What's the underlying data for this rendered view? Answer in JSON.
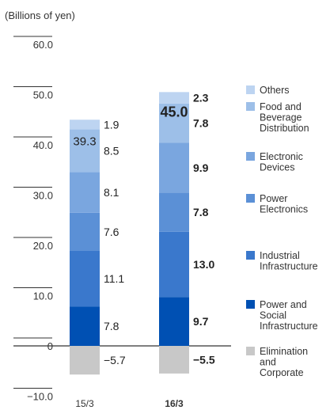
{
  "chart_data": {
    "type": "bar",
    "stacked": true,
    "unit_label": "(Billions of yen)",
    "ylim": [
      -10,
      60
    ],
    "yticks": [
      {
        "value": 60,
        "label": "60.0"
      },
      {
        "value": 50,
        "label": "50.0"
      },
      {
        "value": 40,
        "label": "40.0"
      },
      {
        "value": 30,
        "label": "30.0"
      },
      {
        "value": 20,
        "label": "20.0"
      },
      {
        "value": 10,
        "label": "10.0"
      },
      {
        "value": 0,
        "label": "0"
      },
      {
        "value": -10,
        "label": "−10.0"
      }
    ],
    "categories": [
      "15/3",
      "16/3"
    ],
    "totals": [
      {
        "value": 39.3,
        "label": "39.3"
      },
      {
        "value": 45.0,
        "label": "45.0"
      }
    ],
    "series": [
      {
        "name": "Power and Social Infrastructure",
        "color": "#0050b3",
        "values": [
          7.8,
          9.7
        ],
        "labels": [
          "7.8",
          "9.7"
        ]
      },
      {
        "name": "Industrial Infrastructure",
        "color": "#3a78cc",
        "values": [
          11.1,
          13.0
        ],
        "labels": [
          "11.1",
          "13.0"
        ]
      },
      {
        "name": "Power Electronics",
        "color": "#5b90d6",
        "values": [
          7.6,
          7.8
        ],
        "labels": [
          "7.6",
          "7.8"
        ]
      },
      {
        "name": "Electronic Devices",
        "color": "#7aa6df",
        "values": [
          8.1,
          9.9
        ],
        "labels": [
          "8.1",
          "9.9"
        ]
      },
      {
        "name": "Food and Beverage Distribution",
        "color": "#9dbfe8",
        "values": [
          8.5,
          7.8
        ],
        "labels": [
          "8.5",
          "7.8"
        ]
      },
      {
        "name": "Others",
        "color": "#bdd4f1",
        "values": [
          1.9,
          2.3
        ],
        "labels": [
          "1.9",
          "2.3"
        ]
      },
      {
        "name": "Elimination and Corporate",
        "color": "#c8c8c8",
        "values": [
          -5.7,
          -5.5
        ],
        "labels": [
          "−5.7",
          "−5.5"
        ]
      }
    ],
    "legend": [
      {
        "lines": [
          "Others"
        ],
        "color": "#bdd4f1"
      },
      {
        "lines": [
          "Food and",
          "Beverage",
          "Distribution"
        ],
        "color": "#9dbfe8"
      },
      {
        "lines": [
          "Electronic",
          "Devices"
        ],
        "color": "#7aa6df"
      },
      {
        "lines": [
          "Power",
          "Electronics"
        ],
        "color": "#5b90d6"
      },
      {
        "lines": [
          "Industrial",
          "Infrastructure"
        ],
        "color": "#3a78cc"
      },
      {
        "lines": [
          "Power and",
          "Social",
          "Infrastructure"
        ],
        "color": "#0050b3"
      },
      {
        "lines": [
          "Elimination",
          "and",
          "Corporate"
        ],
        "color": "#c8c8c8"
      }
    ],
    "legend_placement": "right",
    "bold_category": "16/3",
    "grid": false
  }
}
